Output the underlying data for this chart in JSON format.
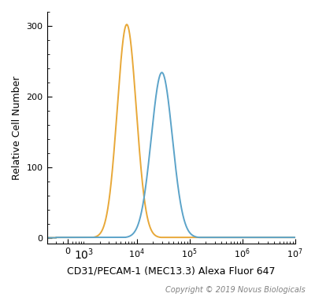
{
  "title": "",
  "xlabel": "CD31/PECAM-1 (MEC13.3) Alexa Fluor 647",
  "ylabel": "Relative Cell Number",
  "copyright": "Copyright © 2019 Novus Biologicals",
  "ylim": [
    -8,
    320
  ],
  "xlim_log": [
    200,
    10000000.0
  ],
  "yticks": [
    0,
    100,
    200,
    300
  ],
  "orange_peak_x": 6500,
  "orange_peak_y": 302,
  "orange_sigma": 0.18,
  "blue_peak_x": 30000,
  "blue_peak_y": 234,
  "blue_sigma": 0.2,
  "orange_color": "#E8A838",
  "blue_color": "#5BA3C9",
  "background_color": "#ffffff",
  "linewidth": 1.4,
  "xlabel_fontsize": 9,
  "ylabel_fontsize": 9,
  "tick_fontsize": 8,
  "copyright_fontsize": 7
}
